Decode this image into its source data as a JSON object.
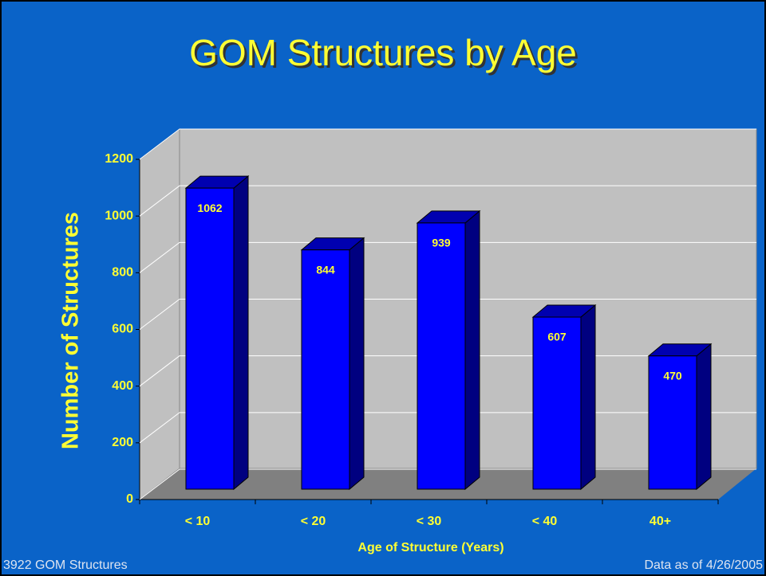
{
  "chart_data": {
    "type": "bar3d",
    "title": "GOM Structures by Age",
    "y_label": "Number of Structures",
    "x_label": "Age of Structure (Years)",
    "categories": [
      "< 10",
      "< 20",
      "< 30",
      "< 40",
      "40+"
    ],
    "values": [
      1062,
      844,
      939,
      607,
      470
    ],
    "colors": {
      "front": "#0000ff",
      "side": "#000080",
      "top": "#0000b0"
    },
    "ylim": [
      0,
      1200
    ],
    "yticks": [
      0,
      200,
      400,
      600,
      800,
      1000,
      1200
    ],
    "grid": true,
    "footer_left": "3922 GOM Structures",
    "footer_right": "Data as of 4/26/2005"
  }
}
